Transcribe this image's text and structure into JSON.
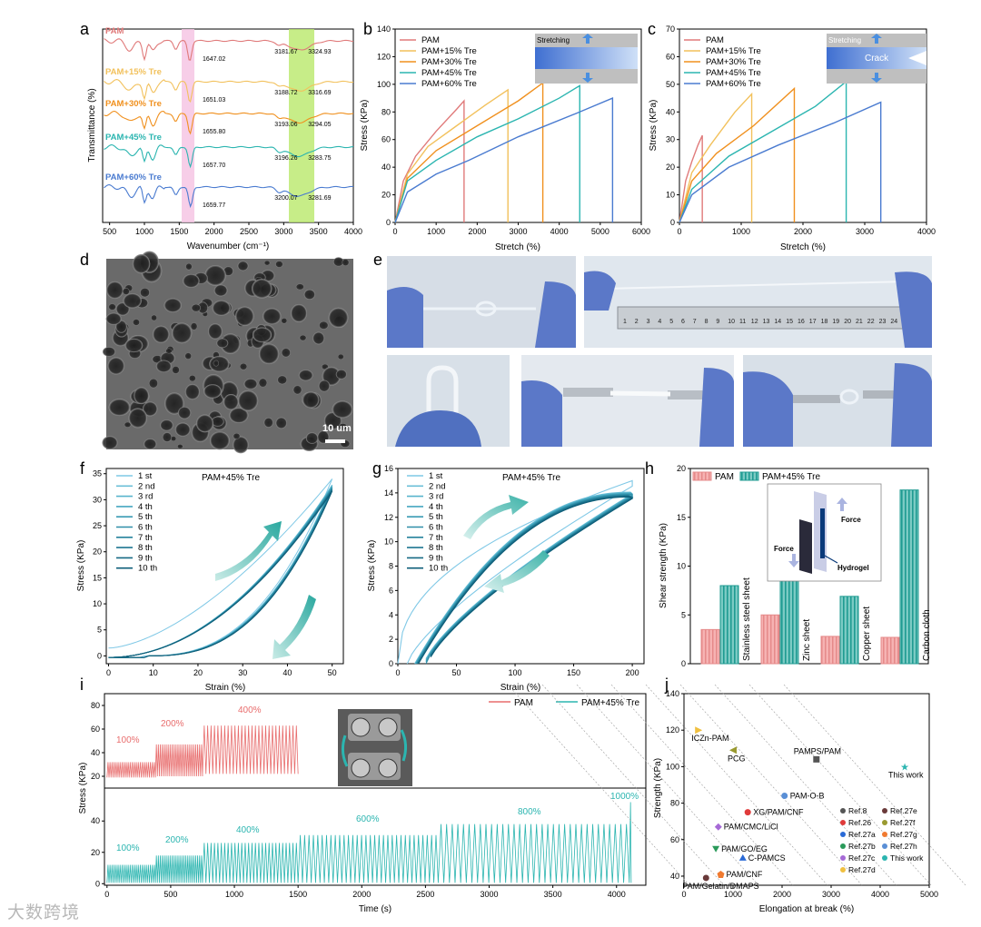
{
  "panels": {
    "a": {
      "letter": "a",
      "xlabel": "Wavenumber (cm⁻¹)",
      "ylabel": "Transmittance (%)",
      "xticks": [
        "500",
        "1000",
        "1500",
        "2000",
        "2500",
        "3000",
        "3500",
        "4000"
      ],
      "traces": [
        {
          "name": "PAM",
          "color": "#e07a7a",
          "labels": [
            "1647.02",
            "3181.67",
            "3324.93"
          ]
        },
        {
          "name": "PAM+15% Tre",
          "color": "#f2c15c",
          "labels": [
            "1651.03",
            "3188.72",
            "3316.69"
          ]
        },
        {
          "name": "PAM+30% Tre",
          "color": "#f0901e",
          "labels": [
            "1655.80",
            "3193.06",
            "3294.05"
          ]
        },
        {
          "name": "PAM+45% Tre",
          "color": "#2bb5b0",
          "labels": [
            "1657.70",
            "3196.26",
            "3283.75"
          ]
        },
        {
          "name": "PAM+60% Tre",
          "color": "#4a7bd0",
          "labels": [
            "1659.77",
            "3200.07",
            "3281.69"
          ]
        }
      ]
    },
    "b": {
      "letter": "b",
      "xlabel": "Stretch (%)",
      "ylabel": "Stress (KPa)",
      "xticks": [
        "0",
        "1000",
        "2000",
        "3000",
        "4000",
        "5000",
        "6000"
      ],
      "yticks": [
        "0",
        "20",
        "40",
        "60",
        "80",
        "100",
        "120",
        "140"
      ],
      "legend": [
        "PAM",
        "PAM+15% Tre",
        "PAM+30% Tre",
        "PAM+45% Tre",
        "PAM+60% Tre"
      ],
      "inset_label": "Stretching"
    },
    "c": {
      "letter": "c",
      "xlabel": "Stretch (%)",
      "ylabel": "Stress (KPa)",
      "xticks": [
        "0",
        "1000",
        "2000",
        "3000",
        "4000"
      ],
      "yticks": [
        "0",
        "10",
        "20",
        "30",
        "40",
        "50",
        "60",
        "70"
      ],
      "legend": [
        "PAM",
        "PAM+15% Tre",
        "PAM+30% Tre",
        "PAM+45% Tre",
        "PAM+60% Tre"
      ],
      "inset_label": "Stretching",
      "inset_crack": "Crack"
    },
    "d": {
      "letter": "d",
      "scale": "10 um"
    },
    "e": {
      "letter": "e",
      "ruler": [
        "1",
        "2",
        "3",
        "4",
        "5",
        "6",
        "7",
        "8",
        "9",
        "10",
        "11",
        "12",
        "13",
        "14",
        "15",
        "16",
        "17",
        "18",
        "19",
        "20",
        "21",
        "22",
        "23",
        "24"
      ]
    },
    "f": {
      "letter": "f",
      "title": "PAM+45% Tre",
      "xlabel": "Strain (%)",
      "ylabel": "Stress (KPa)",
      "xticks": [
        "0",
        "10",
        "20",
        "30",
        "40",
        "50"
      ],
      "yticks": [
        "0",
        "5",
        "10",
        "15",
        "20",
        "25",
        "30",
        "35"
      ],
      "legend": [
        "1 st",
        "2 nd",
        "3 rd",
        "4 th",
        "5 th",
        "6 th",
        "7 th",
        "8 th",
        "9 th",
        "10 th"
      ]
    },
    "g": {
      "letter": "g",
      "title": "PAM+45% Tre",
      "xlabel": "Strain (%)",
      "ylabel": "Stress (KPa)",
      "xticks": [
        "0",
        "50",
        "100",
        "150",
        "200"
      ],
      "yticks": [
        "0",
        "2",
        "4",
        "6",
        "8",
        "10",
        "12",
        "14",
        "16"
      ],
      "legend": [
        "1 st",
        "2 nd",
        "3 rd",
        "4 th",
        "5 th",
        "6 th",
        "7 th",
        "8 th",
        "9 th",
        "10 th"
      ]
    },
    "h": {
      "letter": "h",
      "ylabel": "Shear strength (KPa)",
      "legend": [
        "PAM",
        "PAM+45% Tre"
      ],
      "yticks": [
        "0",
        "5",
        "10",
        "15",
        "20"
      ],
      "inset": [
        "Force",
        "Force",
        "Hydrogel"
      ]
    },
    "i": {
      "letter": "i",
      "xlabel": "Time (s)",
      "ylabel": "Stress (KPa)",
      "xticks": [
        "0",
        "500",
        "1000",
        "1500",
        "2000",
        "2500",
        "3000",
        "3500",
        "4000"
      ],
      "yticks_top": [
        "20",
        "40",
        "60",
        "80"
      ],
      "yticks_bottom": [
        "0",
        "20",
        "40"
      ],
      "legend": [
        "PAM",
        "PAM+45% Tre"
      ],
      "top_labels": [
        "100%",
        "200%",
        "400%"
      ],
      "bottom_labels": [
        "100%",
        "200%",
        "400%",
        "600%",
        "800%",
        "1000%"
      ]
    },
    "j": {
      "letter": "j",
      "xlabel": "Elongation at break (%)",
      "ylabel": "Strength (KPa)",
      "xticks": [
        "0",
        "1000",
        "2000",
        "3000",
        "4000",
        "5000"
      ],
      "yticks": [
        "40",
        "60",
        "80",
        "100",
        "120",
        "140"
      ],
      "legend": [
        "Ref.8",
        "Ref.27e",
        "Ref.26",
        "Ref.27f",
        "Ref.27a",
        "Ref.27g",
        "Ref.27b",
        "Ref.27h",
        "Ref.27c",
        "This work",
        "Ref.27d"
      ]
    }
  },
  "watermark": "大数跨境",
  "chart_data": [
    {
      "panel": "b",
      "type": "line",
      "title": "",
      "xlabel": "Stretch (%)",
      "ylabel": "Stress (KPa)",
      "xlim": [
        0,
        6000
      ],
      "ylim": [
        0,
        140
      ],
      "series": [
        {
          "name": "PAM",
          "x": [
            0,
            200,
            500,
            1000,
            1500,
            1680
          ],
          "values": [
            0,
            30,
            48,
            66,
            82,
            88
          ]
        },
        {
          "name": "PAM+15% Tre",
          "x": [
            0,
            300,
            800,
            1500,
            2200,
            2750
          ],
          "values": [
            0,
            35,
            55,
            70,
            85,
            96
          ]
        },
        {
          "name": "PAM+30% Tre",
          "x": [
            0,
            300,
            1000,
            2000,
            3000,
            3600
          ],
          "values": [
            0,
            32,
            52,
            70,
            88,
            101
          ]
        },
        {
          "name": "PAM+45% Tre",
          "x": [
            0,
            300,
            1000,
            2000,
            3000,
            4000,
            4500
          ],
          "values": [
            0,
            30,
            45,
            62,
            75,
            90,
            99
          ]
        },
        {
          "name": "PAM+60% Tre",
          "x": [
            0,
            300,
            1000,
            1800,
            3000,
            4500,
            5300
          ],
          "values": [
            0,
            22,
            35,
            45,
            62,
            80,
            90
          ]
        }
      ]
    },
    {
      "panel": "c",
      "type": "line",
      "title": "",
      "xlabel": "Stretch (%)",
      "ylabel": "Stress (KPa)",
      "xlim": [
        0,
        4000
      ],
      "ylim": [
        0,
        70
      ],
      "series": [
        {
          "name": "PAM",
          "x": [
            0,
            100,
            200,
            300,
            370
          ],
          "values": [
            0,
            15,
            22,
            28,
            31.5
          ]
        },
        {
          "name": "PAM+15% Tre",
          "x": [
            0,
            200,
            500,
            900,
            1170
          ],
          "values": [
            0,
            18,
            28,
            40,
            46.5
          ]
        },
        {
          "name": "PAM+30% Tre",
          "x": [
            0,
            200,
            600,
            1200,
            1860
          ],
          "values": [
            0,
            15,
            25,
            35,
            48.5
          ]
        },
        {
          "name": "PAM+45% Tre",
          "x": [
            0,
            200,
            800,
            1500,
            2200,
            2700
          ],
          "values": [
            0,
            12,
            24,
            33,
            42,
            51
          ]
        },
        {
          "name": "PAM+60% Tre",
          "x": [
            0,
            200,
            800,
            1600,
            2500,
            3260
          ],
          "values": [
            0,
            10,
            20,
            28,
            36,
            43.5
          ]
        }
      ]
    },
    {
      "panel": "h",
      "type": "bar",
      "title": "",
      "xlabel": "",
      "ylabel": "Shear strength (KPa)",
      "ylim": [
        0,
        20
      ],
      "categories": [
        "Stainless steel sheet",
        "Zinc sheet",
        "Copper sheet",
        "Carbon cloth"
      ],
      "series": [
        {
          "name": "PAM",
          "values": [
            3.5,
            5.0,
            2.8,
            2.7
          ]
        },
        {
          "name": "PAM+45% Tre",
          "values": [
            8.0,
            8.6,
            6.9,
            17.8
          ]
        }
      ]
    },
    {
      "panel": "j",
      "type": "scatter",
      "title": "",
      "xlabel": "Elongation at break (%)",
      "ylabel": "Strength (KPa)",
      "xlim": [
        0,
        5000
      ],
      "ylim": [
        35,
        140
      ],
      "points": [
        {
          "label": "ICZn-PAM",
          "x": 300,
          "y": 120,
          "color": "#f0c040"
        },
        {
          "label": "PCG",
          "x": 1000,
          "y": 109,
          "color": "#9a9a30"
        },
        {
          "label": "PAMPS/PAM",
          "x": 2700,
          "y": 104,
          "color": "#555555"
        },
        {
          "label": "This work",
          "x": 4500,
          "y": 100,
          "color": "#2bb5b0"
        },
        {
          "label": "PAM-O-B",
          "x": 2050,
          "y": 84,
          "color": "#5a8fd6"
        },
        {
          "label": "XG/PAM/CNF",
          "x": 1300,
          "y": 75,
          "color": "#e03a3a"
        },
        {
          "label": "PAM/CMC/LiCl",
          "x": 700,
          "y": 67,
          "color": "#a66ad6"
        },
        {
          "label": "PAM/GO/EG",
          "x": 650,
          "y": 55,
          "color": "#2a9a5a"
        },
        {
          "label": "C-PAMCS",
          "x": 1200,
          "y": 50,
          "color": "#2a6ad6"
        },
        {
          "label": "PAM/CNF",
          "x": 750,
          "y": 41,
          "color": "#f07a30"
        },
        {
          "label": "PAM/Gelatin/DMAPS",
          "x": 450,
          "y": 39,
          "color": "#6a3a3a"
        }
      ]
    }
  ]
}
